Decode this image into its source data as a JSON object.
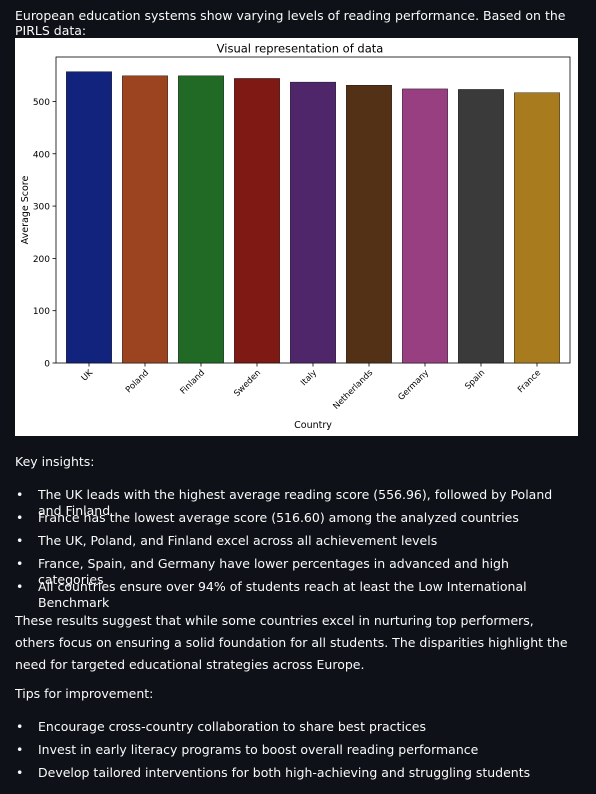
{
  "intro_text": "European education systems show varying levels of reading performance. Based on the PIRLS data:",
  "chart_data": {
    "type": "bar",
    "title": "Visual representation of data",
    "xlabel": "Country",
    "ylabel": "Average Score",
    "categories": [
      "UK",
      "Poland",
      "Finland",
      "Sweden",
      "Italy",
      "Netherlands",
      "Germany",
      "Spain",
      "France"
    ],
    "values": [
      556.96,
      549,
      549,
      544,
      537,
      531,
      524,
      523,
      516.6
    ],
    "colors": [
      "#12237e",
      "#9c4320",
      "#206a26",
      "#7e1914",
      "#4e2669",
      "#533117",
      "#973f81",
      "#3a3a3a",
      "#a87c1e"
    ],
    "yticks": [
      0,
      100,
      200,
      300,
      400,
      500
    ],
    "ylim": [
      0,
      585
    ],
    "grid": false
  },
  "key_insights": {
    "heading": "Key insights:",
    "items": [
      "The UK leads with the highest average reading score (556.96), followed by Poland and Finland",
      "France has the lowest average score (516.60) among the analyzed countries",
      "The UK, Poland, and Finland excel across all achievement levels",
      "France, Spain, and Germany have lower percentages in advanced and high categories",
      "All countries ensure over 94% of students reach at least the Low International Benchmark"
    ]
  },
  "conclusion": "These results suggest that while some countries excel in nurturing top performers, others focus on ensuring a solid foundation for all students. The disparities highlight the need for targeted educational strategies across Europe.",
  "tips": {
    "heading": "Tips for improvement:",
    "items": [
      "Encourage cross-country collaboration to share best practices",
      "Invest in early literacy programs to boost overall reading performance",
      "Develop tailored interventions for both high-achieving and struggling students"
    ]
  }
}
